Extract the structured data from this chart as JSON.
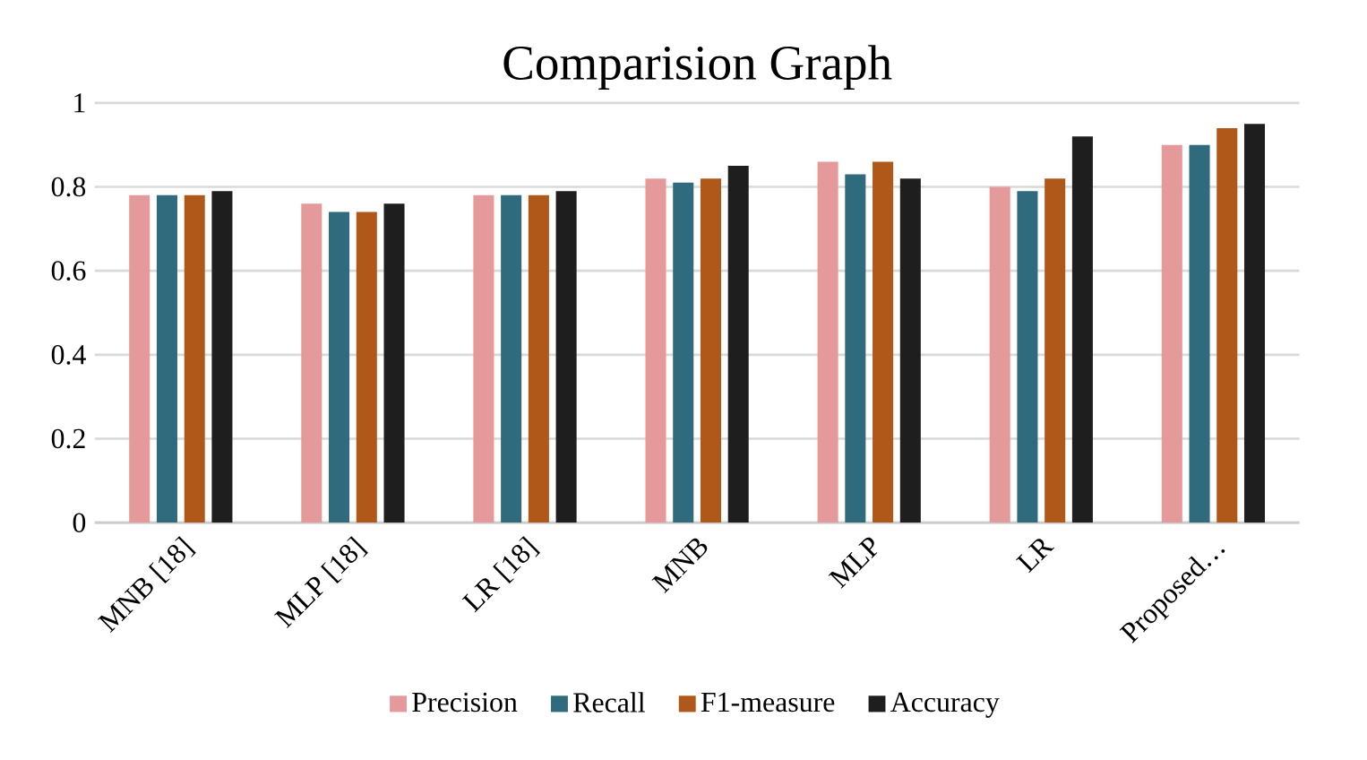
{
  "chart_data": {
    "type": "bar",
    "title": "Comparision Graph",
    "categories": [
      "MNB [18]",
      "MLP [18]",
      "LR [18]",
      "MNB",
      "MLP",
      "LR",
      "Proposed…"
    ],
    "series": [
      {
        "name": "Precision",
        "color": "#e49a9a",
        "values": [
          0.78,
          0.76,
          0.78,
          0.82,
          0.86,
          0.8,
          0.9
        ]
      },
      {
        "name": "Recall",
        "color": "#2f6b7c",
        "values": [
          0.78,
          0.74,
          0.78,
          0.81,
          0.83,
          0.79,
          0.9
        ]
      },
      {
        "name": "F1-measure",
        "color": "#b0581a",
        "values": [
          0.78,
          0.74,
          0.78,
          0.82,
          0.86,
          0.82,
          0.94
        ]
      },
      {
        "name": "Accuracy",
        "color": "#1e1e1e",
        "values": [
          0.79,
          0.76,
          0.79,
          0.85,
          0.82,
          0.92,
          0.95
        ]
      }
    ],
    "ylim": [
      0,
      1
    ],
    "yticks": [
      0,
      0.2,
      0.4,
      0.6,
      0.8,
      1
    ],
    "grid": "y",
    "legend": "bottom"
  }
}
